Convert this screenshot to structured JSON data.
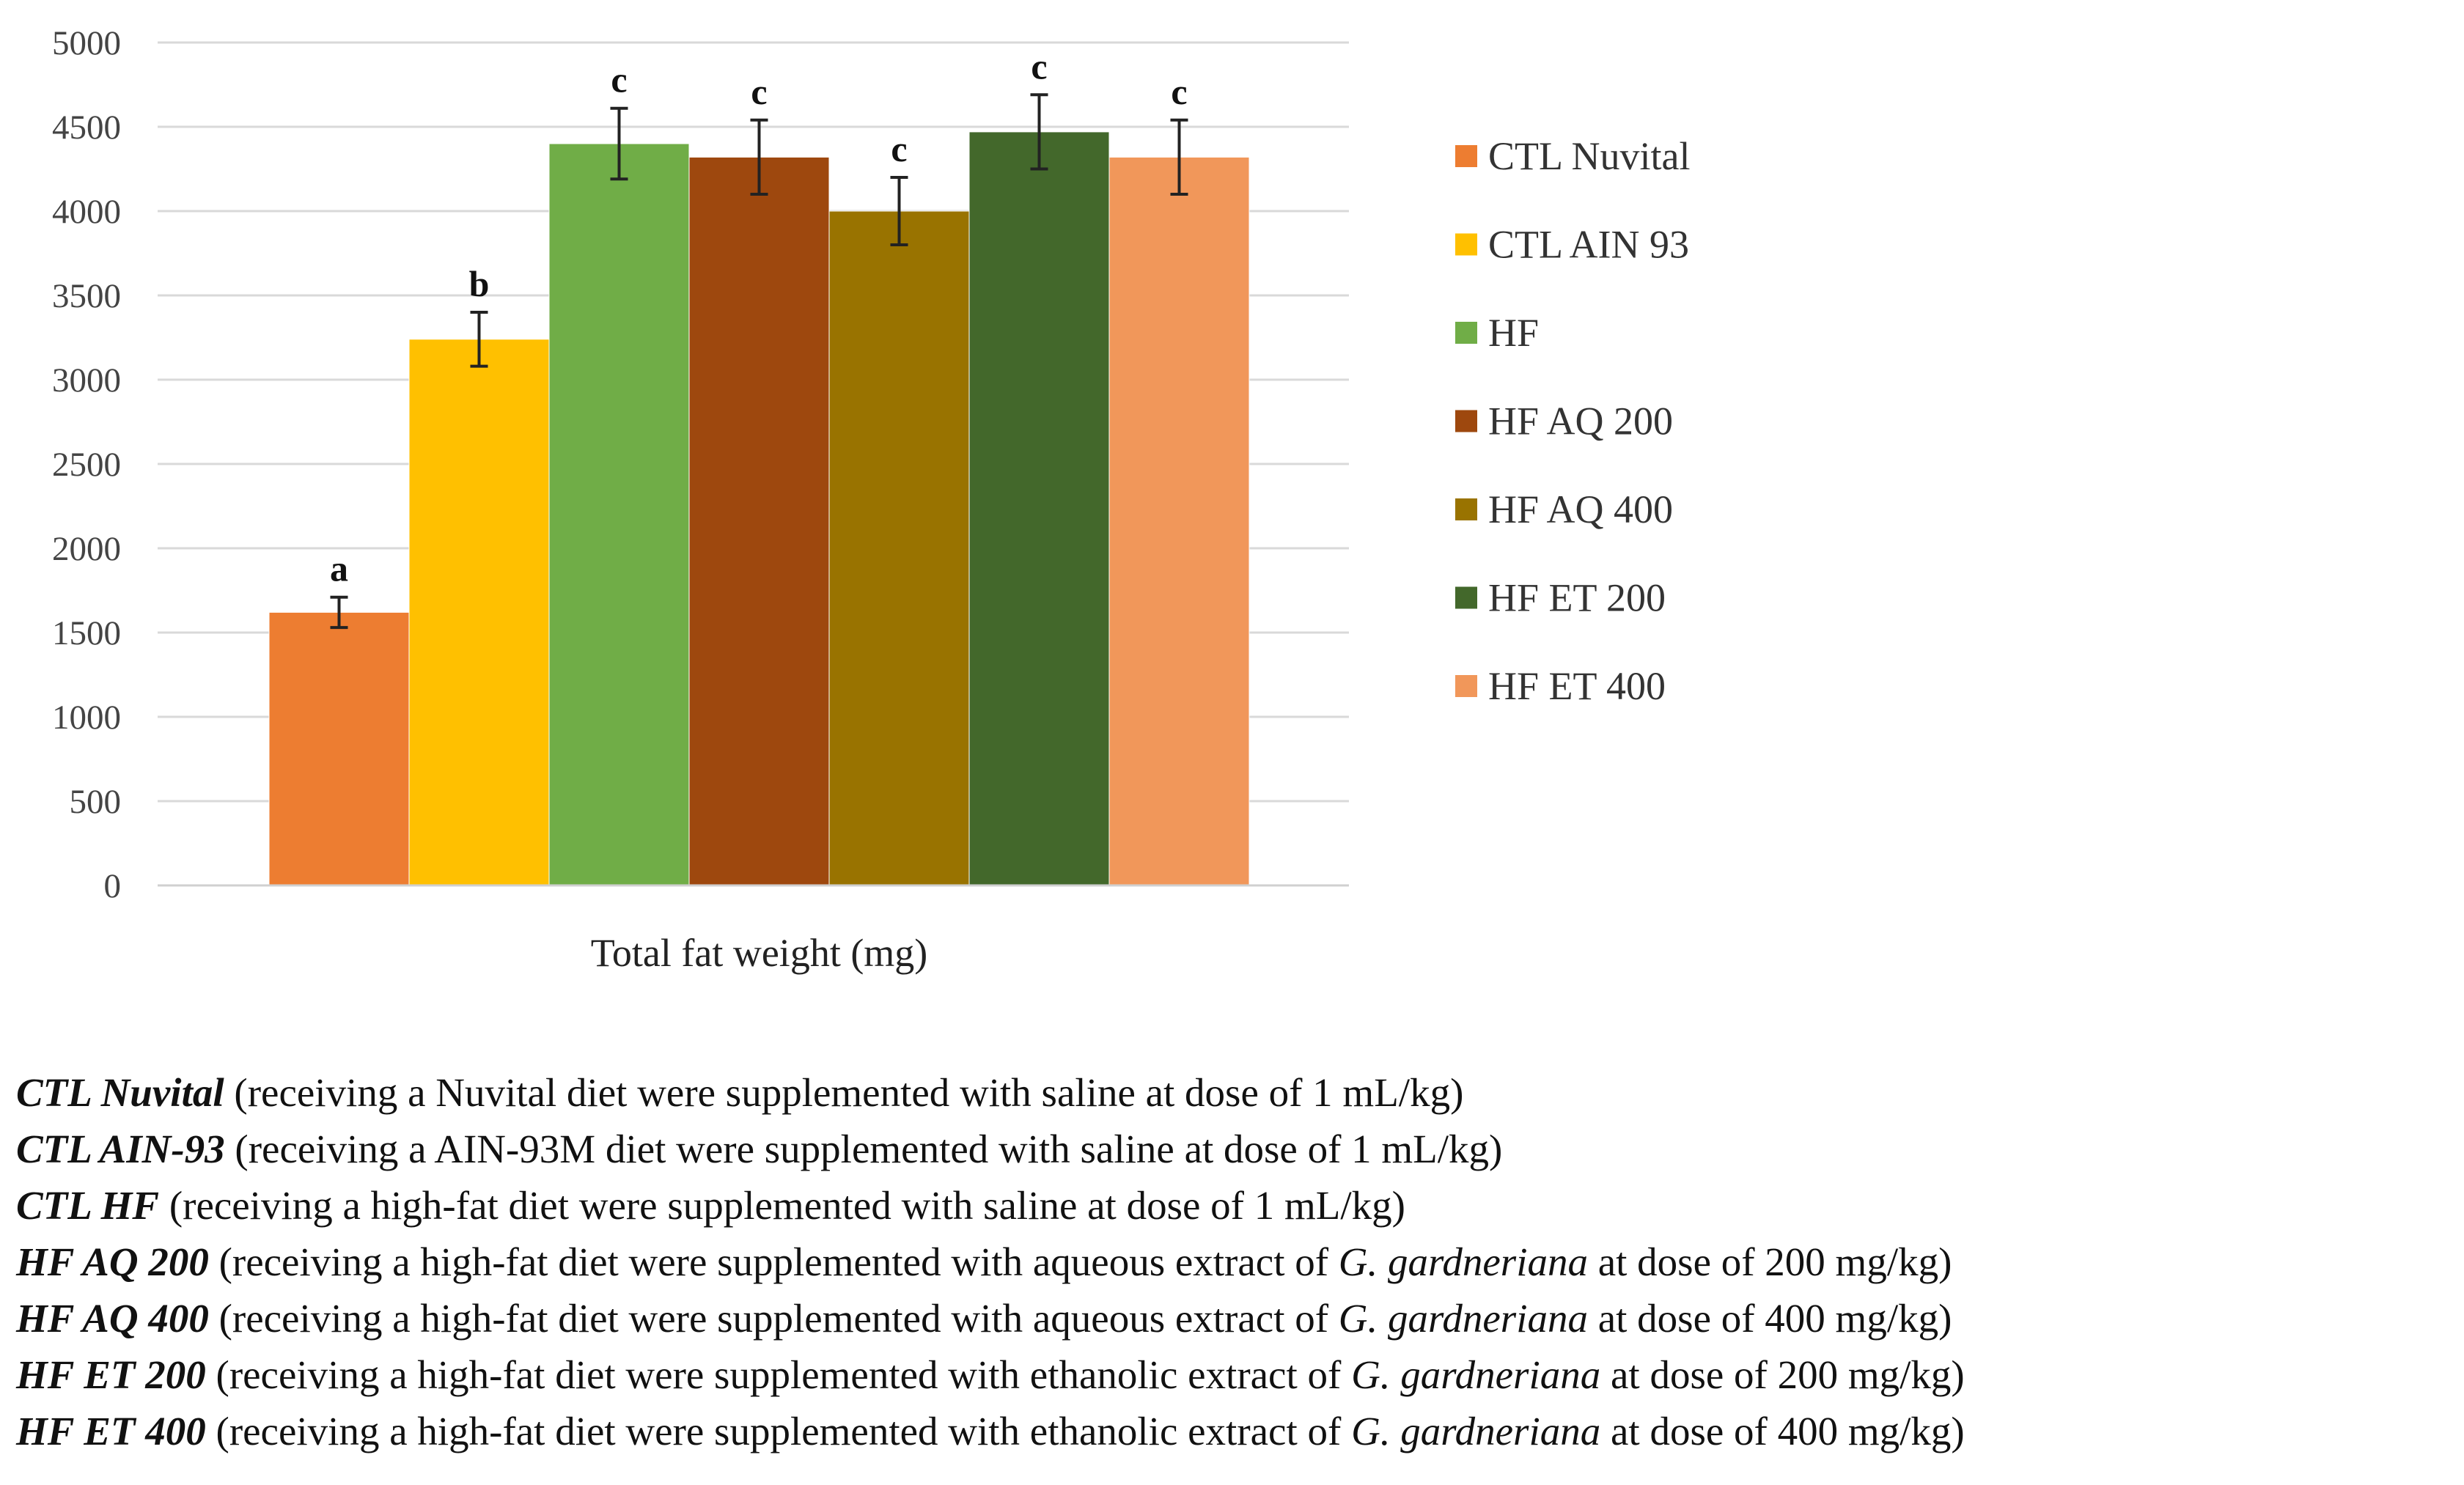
{
  "chart_data": {
    "type": "bar",
    "title": "",
    "xlabel": "Total fat weight (mg)",
    "ylabel": "",
    "ylim": [
      0,
      5000
    ],
    "yticks": [
      "0",
      "500",
      "1000",
      "1500",
      "2000",
      "2500",
      "3000",
      "3500",
      "4000",
      "4500",
      "5000"
    ],
    "grid": true,
    "legend_position": "right",
    "series": [
      {
        "name": "CTL Nuvital",
        "value": 1620,
        "error": 90,
        "significance": "a",
        "color": "#ED7D31"
      },
      {
        "name": "CTL AIN 93",
        "value": 3240,
        "error": 160,
        "significance": "b",
        "color": "#FFC000"
      },
      {
        "name": "HF",
        "value": 4400,
        "error": 210,
        "significance": "c",
        "color": "#70AD47"
      },
      {
        "name": "HF AQ 200",
        "value": 4320,
        "error": 220,
        "significance": "c",
        "color": "#9E480E"
      },
      {
        "name": "HF AQ 400",
        "value": 4000,
        "error": 200,
        "significance": "c",
        "color": "#997300"
      },
      {
        "name": "HF ET 200",
        "value": 4470,
        "error": 220,
        "significance": "c",
        "color": "#43682B"
      },
      {
        "name": "HF ET 400",
        "value": 4320,
        "error": 220,
        "significance": "c",
        "color": "#F1975A"
      }
    ]
  },
  "caption": [
    {
      "abbr": "CTL Nuvital",
      "text": " (receiving a Nuvital diet were supplemented with saline at dose of 1 mL/kg)"
    },
    {
      "abbr": "CTL AIN-93",
      "text": " (receiving a AIN-93M diet were supplemented with saline at dose of 1 mL/kg)"
    },
    {
      "abbr": "CTL HF",
      "text": " (receiving a high-fat diet were supplemented with saline at dose of 1 mL/kg)"
    },
    {
      "abbr": "HF AQ 200",
      "text": " (receiving a high-fat diet were supplemented with aqueous extract of ",
      "species": "G. gardneriana",
      "tail": " at dose of 200 mg/kg)"
    },
    {
      "abbr": "HF AQ 400",
      "text": " (receiving a high-fat diet were supplemented with aqueous extract of ",
      "species": "G. gardneriana",
      "tail": " at dose of 400 mg/kg)"
    },
    {
      "abbr": "HF ET 200",
      "text": " (receiving a high-fat diet were supplemented with ethanolic extract of ",
      "species": "G. gardneriana",
      "tail": " at dose of 200 mg/kg)"
    },
    {
      "abbr": "HF ET 400",
      "text": " (receiving a high-fat diet were supplemented with ethanolic extract of ",
      "species": "G. gardneriana",
      "tail": " at dose of 400 mg/kg)"
    }
  ]
}
